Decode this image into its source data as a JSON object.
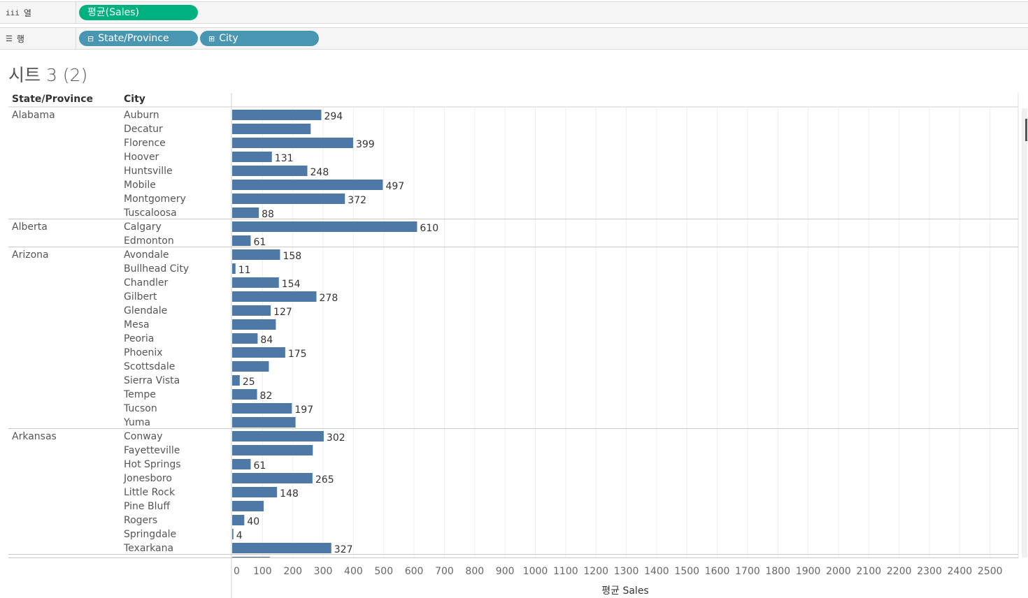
{
  "shelves": {
    "columns": {
      "label": "열",
      "icon": "iii",
      "pills": [
        {
          "label": "평균(Sales)"
        }
      ]
    },
    "rows": {
      "label": "행",
      "icon": "☰",
      "pills": [
        {
          "label": "State/Province"
        },
        {
          "label": "City"
        }
      ]
    }
  },
  "sheet": {
    "title": "시트 3 (2)"
  },
  "colors": {
    "bar": "#4e79a7",
    "pill_measure": "#00b180",
    "pill_dimension": "#4996b2"
  },
  "chart_data": {
    "type": "bar",
    "orientation": "horizontal",
    "row_headers": [
      "State/Province",
      "City"
    ],
    "xlabel": "평균 Sales",
    "xlim": [
      0,
      2550
    ],
    "xticks": [
      "0",
      "100",
      "200",
      "300",
      "400",
      "500",
      "600",
      "700",
      "800",
      "900",
      "1000",
      "1100",
      "1200",
      "1300",
      "1400",
      "1500",
      "1600",
      "1700",
      "1800",
      "1900",
      "2000",
      "2100",
      "2200",
      "2300",
      "2400",
      "2500"
    ],
    "groups": [
      {
        "state": "Alabama",
        "cities": [
          {
            "city": "Auburn",
            "value": 294,
            "label": "294"
          },
          {
            "city": "Decatur",
            "value": 259,
            "label": ""
          },
          {
            "city": "Florence",
            "value": 399,
            "label": "399"
          },
          {
            "city": "Hoover",
            "value": 131,
            "label": "131"
          },
          {
            "city": "Huntsville",
            "value": 248,
            "label": "248"
          },
          {
            "city": "Mobile",
            "value": 497,
            "label": "497"
          },
          {
            "city": "Montgomery",
            "value": 372,
            "label": "372"
          },
          {
            "city": "Tuscaloosa",
            "value": 88,
            "label": "88"
          }
        ]
      },
      {
        "state": "Alberta",
        "cities": [
          {
            "city": "Calgary",
            "value": 610,
            "label": "610"
          },
          {
            "city": "Edmonton",
            "value": 61,
            "label": "61"
          }
        ]
      },
      {
        "state": "Arizona",
        "cities": [
          {
            "city": "Avondale",
            "value": 158,
            "label": "158"
          },
          {
            "city": "Bullhead City",
            "value": 11,
            "label": "11"
          },
          {
            "city": "Chandler",
            "value": 154,
            "label": "154"
          },
          {
            "city": "Gilbert",
            "value": 278,
            "label": "278"
          },
          {
            "city": "Glendale",
            "value": 127,
            "label": "127"
          },
          {
            "city": "Mesa",
            "value": 144,
            "label": ""
          },
          {
            "city": "Peoria",
            "value": 84,
            "label": "84"
          },
          {
            "city": "Phoenix",
            "value": 175,
            "label": "175"
          },
          {
            "city": "Scottsdale",
            "value": 121,
            "label": ""
          },
          {
            "city": "Sierra Vista",
            "value": 25,
            "label": "25"
          },
          {
            "city": "Tempe",
            "value": 82,
            "label": "82"
          },
          {
            "city": "Tucson",
            "value": 197,
            "label": "197"
          },
          {
            "city": "Yuma",
            "value": 209,
            "label": ""
          }
        ]
      },
      {
        "state": "Arkansas",
        "cities": [
          {
            "city": "Conway",
            "value": 302,
            "label": "302"
          },
          {
            "city": "Fayetteville",
            "value": 266,
            "label": ""
          },
          {
            "city": "Hot Springs",
            "value": 61,
            "label": "61"
          },
          {
            "city": "Jonesboro",
            "value": 265,
            "label": "265"
          },
          {
            "city": "Little Rock",
            "value": 148,
            "label": "148"
          },
          {
            "city": "Pine Bluff",
            "value": 104,
            "label": ""
          },
          {
            "city": "Rogers",
            "value": 40,
            "label": "40"
          },
          {
            "city": "Springdale",
            "value": 4,
            "label": "4"
          },
          {
            "city": "Texarkana",
            "value": 327,
            "label": "327"
          }
        ]
      }
    ]
  }
}
